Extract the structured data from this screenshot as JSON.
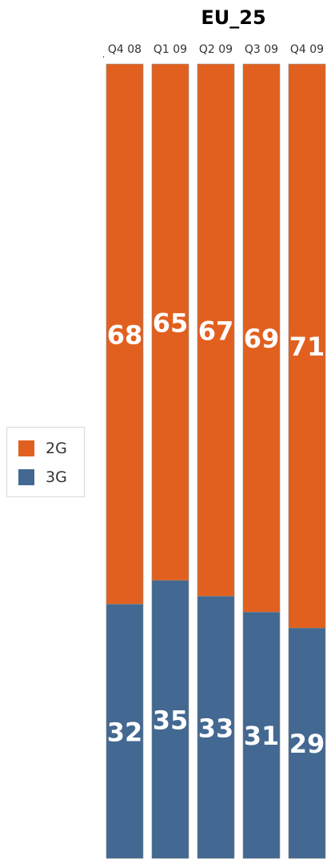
{
  "chart_data": {
    "type": "bar",
    "stacked": true,
    "title": "EU_25",
    "categories": [
      "Q4 08",
      "Q1 09",
      "Q2 09",
      "Q3 09",
      "Q4 09"
    ],
    "series": [
      {
        "name": "2G",
        "color": "#e2601f",
        "values": [
          68,
          65,
          67,
          69,
          71
        ]
      },
      {
        "name": "3G",
        "color": "#436891",
        "values": [
          32,
          35,
          33,
          31,
          29
        ]
      }
    ],
    "ylim": [
      0,
      100
    ],
    "legend_position": "left",
    "grid": false
  }
}
